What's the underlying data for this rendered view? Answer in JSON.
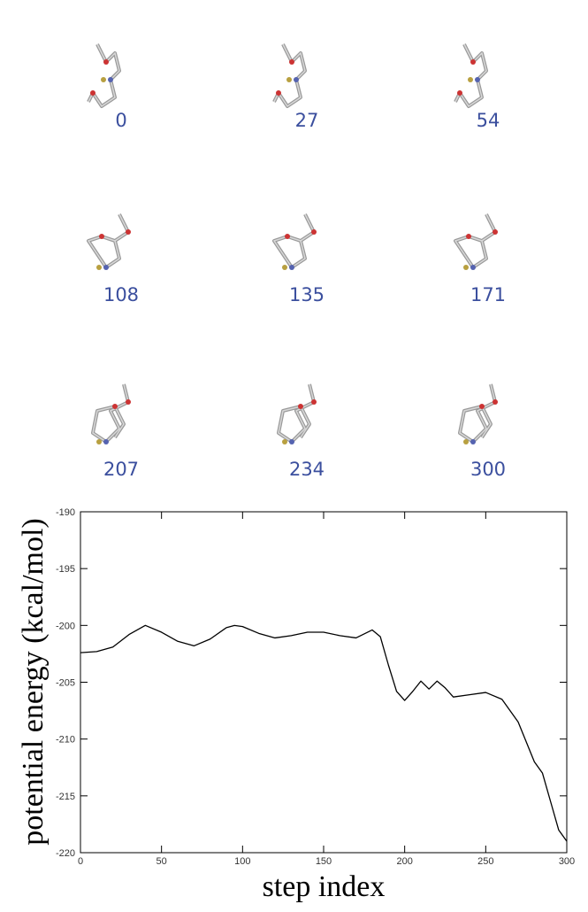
{
  "snapshots": [
    0,
    27,
    54,
    108,
    135,
    171,
    207,
    234,
    300
  ],
  "chart_data": {
    "type": "line",
    "x_label": "step index",
    "y_label": "potential energy (kcal/mol)",
    "x": [
      0,
      10,
      20,
      30,
      40,
      50,
      60,
      70,
      80,
      90,
      95,
      100,
      110,
      120,
      130,
      140,
      150,
      160,
      170,
      180,
      185,
      190,
      195,
      200,
      205,
      210,
      215,
      220,
      225,
      230,
      240,
      250,
      260,
      270,
      280,
      285,
      290,
      295,
      300
    ],
    "series": [
      {
        "color": "#000000",
        "values": [
          -202.4,
          -202.3,
          -201.9,
          -200.8,
          -200.0,
          -200.6,
          -201.4,
          -201.8,
          -201.2,
          -200.2,
          -200.0,
          -200.1,
          -200.7,
          -201.1,
          -200.9,
          -200.6,
          -200.6,
          -200.9,
          -201.1,
          -200.4,
          -201.0,
          -203.5,
          -205.8,
          -206.6,
          -205.8,
          -204.9,
          -205.6,
          -204.9,
          -205.5,
          -206.3,
          -206.1,
          -205.9,
          -206.5,
          -208.5,
          -212.0,
          -213.0,
          -215.5,
          -218.0,
          -219.0
        ]
      }
    ],
    "xlim": [
      0,
      300
    ],
    "xticks": [
      0,
      50,
      100,
      150,
      200,
      250,
      300
    ],
    "ylim": [
      -220,
      -190
    ],
    "yticks": [
      -220,
      -215,
      -210,
      -205,
      -200,
      -195,
      -190
    ],
    "grid": false
  }
}
